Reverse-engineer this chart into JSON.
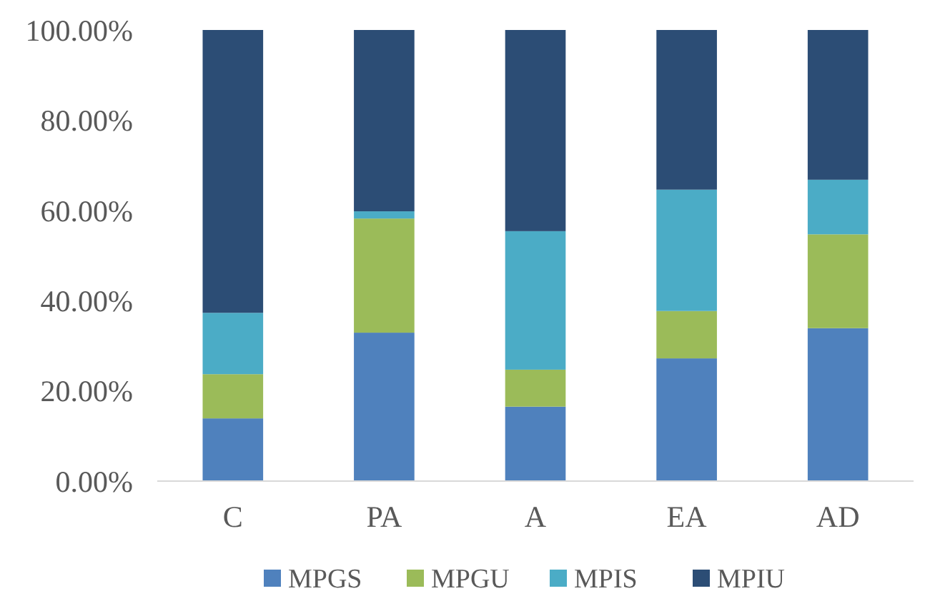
{
  "chart_data": {
    "type": "bar",
    "stacked": true,
    "categories": [
      "C",
      "PA",
      "A",
      "EA",
      "AD"
    ],
    "series": [
      {
        "name": "MPGS",
        "color": "#4f81bd",
        "values": [
          13.9,
          32.9,
          16.5,
          27.2,
          33.9
        ]
      },
      {
        "name": "MPGU",
        "color": "#9bbb59",
        "values": [
          9.8,
          25.3,
          8.2,
          10.5,
          20.8
        ]
      },
      {
        "name": "MPIS",
        "color": "#4bacc6",
        "values": [
          13.6,
          1.6,
          30.7,
          26.9,
          12.1
        ]
      },
      {
        "name": "MPIU",
        "color": "#2c4d75",
        "values": [
          62.7,
          40.2,
          44.6,
          35.4,
          33.2
        ]
      }
    ],
    "ylim": [
      0,
      100
    ],
    "yticks": [
      {
        "value": 0,
        "label": "0.00%"
      },
      {
        "value": 20,
        "label": "20.00%"
      },
      {
        "value": 40,
        "label": "40.00%"
      },
      {
        "value": 60,
        "label": "60.00%"
      },
      {
        "value": 80,
        "label": "80.00%"
      },
      {
        "value": 100,
        "label": "100.00%"
      }
    ],
    "legend": "bottom",
    "grid": false
  }
}
